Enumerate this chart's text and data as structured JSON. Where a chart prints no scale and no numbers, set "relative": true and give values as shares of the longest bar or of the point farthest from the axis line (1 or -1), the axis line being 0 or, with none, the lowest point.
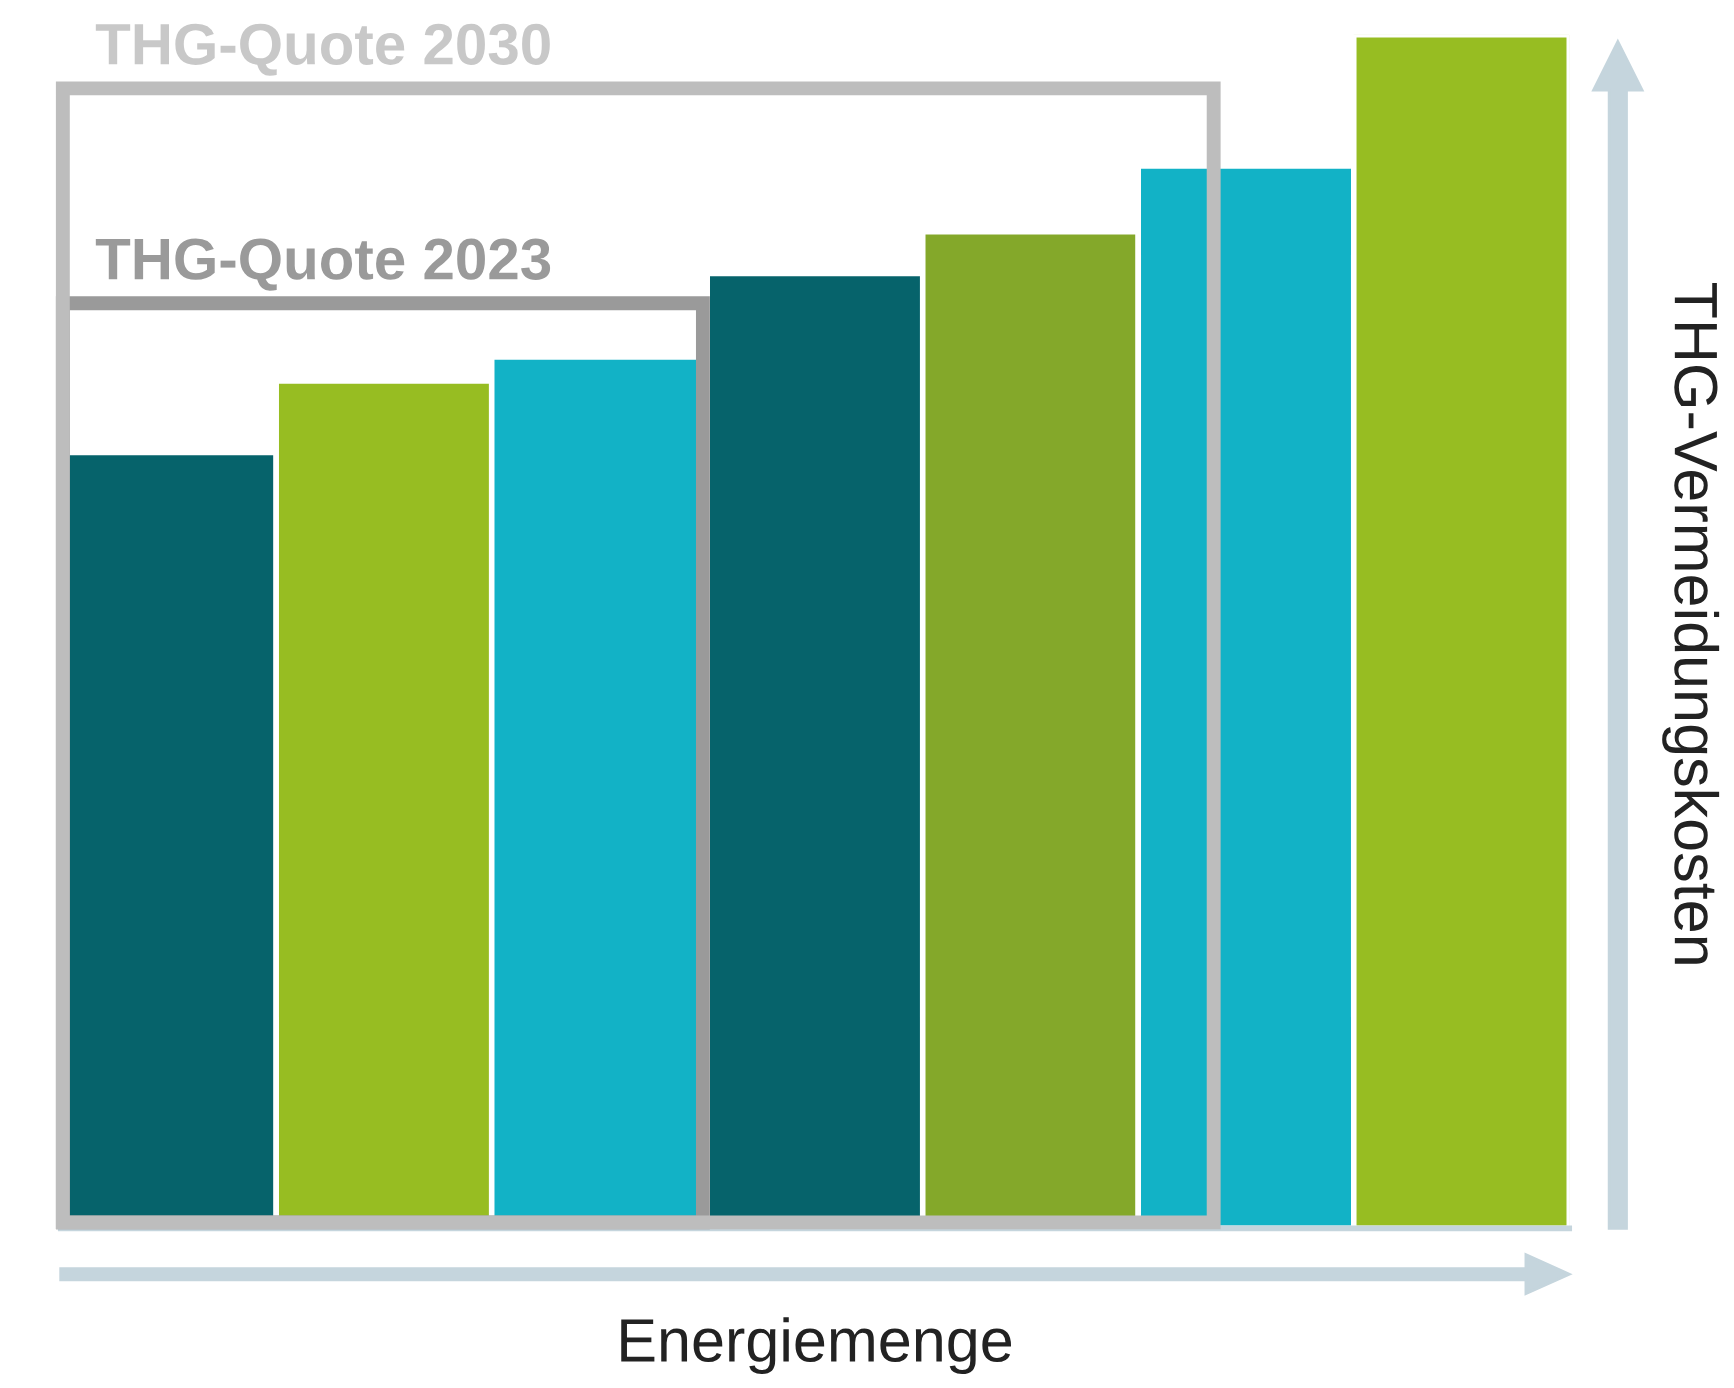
{
  "chart_data": {
    "type": "bar",
    "relative": true,
    "xlabel": "Energiemenge",
    "ylabel": "THG-Vermeidungskosten",
    "categories": [
      null,
      null,
      null,
      null,
      null,
      null,
      null
    ],
    "values": [
      0.65,
      0.71,
      0.73,
      0.8,
      0.835,
      0.89,
      1.0
    ],
    "colors": [
      "#06636b",
      "#97bd22",
      "#12b2c6",
      "#06636b",
      "#84a82a",
      "#12b2c6",
      "#97bd22"
    ],
    "annotations": [
      "THG-Quote 2023",
      "THG-Quote 2030"
    ],
    "grid": false
  }
}
